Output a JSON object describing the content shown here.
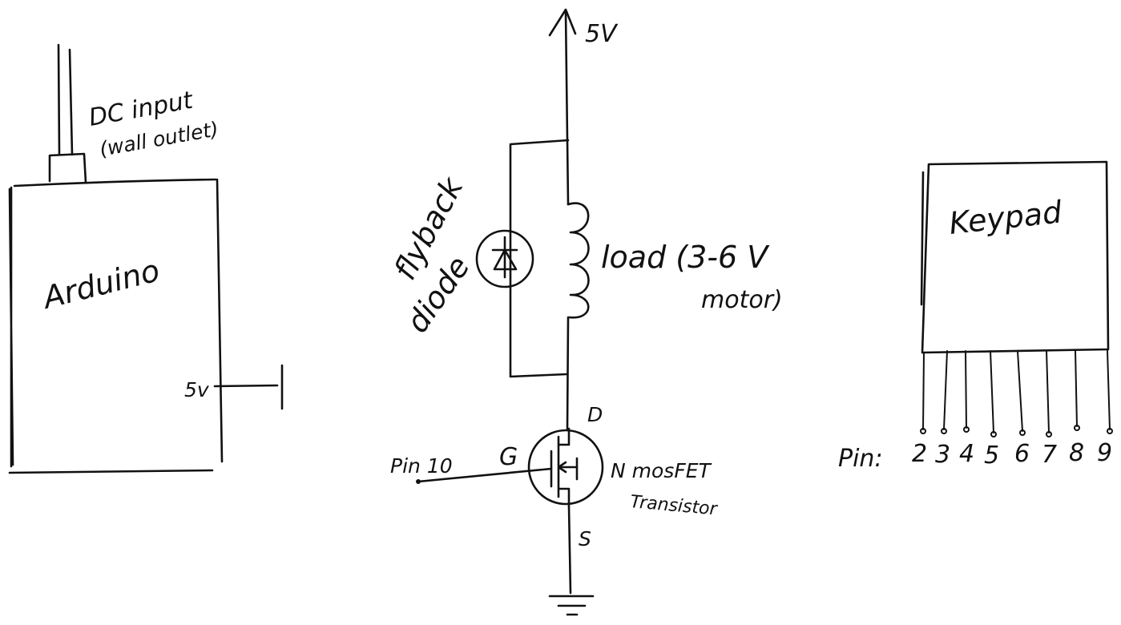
{
  "arduino": {
    "label": "Arduino",
    "pin_5v": "5v",
    "dc_input_line1": "DC input",
    "dc_input_line2": "(wall outlet)"
  },
  "circuit": {
    "supply": "5V",
    "diode_line1": "flyback",
    "diode_line2": "diode",
    "load_line1": "load (3-6 V",
    "load_line2": "motor)",
    "gate": "G",
    "drain": "D",
    "source": "S",
    "gate_pin": "Pin 10",
    "transistor_line1": "N mosFET",
    "transistor_line2": "Transistor"
  },
  "keypad": {
    "label": "Keypad",
    "pins_prefix": "Pin:",
    "pins": [
      "2",
      "3",
      "4",
      "5",
      "6",
      "7",
      "8",
      "9"
    ]
  }
}
